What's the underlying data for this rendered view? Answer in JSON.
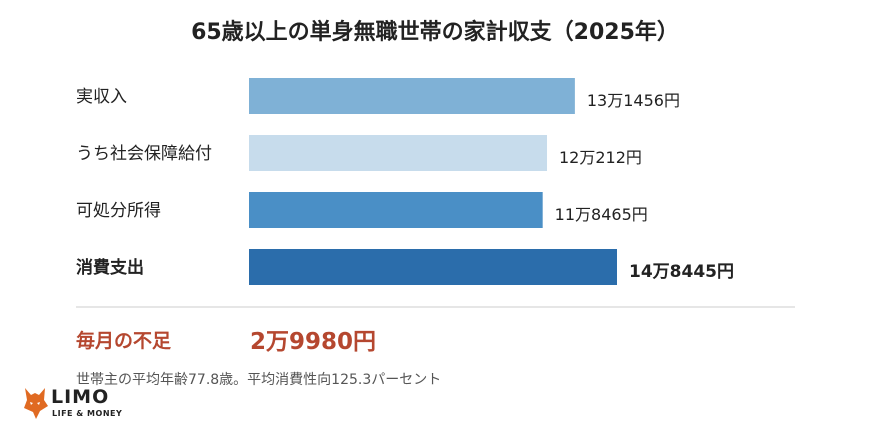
{
  "chart_data": {
    "type": "bar",
    "orientation": "horizontal",
    "title": "65歳以上の単身無職世帯の家計収支（2025年）",
    "categories": [
      "実収入",
      "うち社会保障給付",
      "可処分所得",
      "消費支出"
    ],
    "values": [
      131456,
      120212,
      118465,
      148445
    ],
    "value_labels": [
      "13万1456円",
      "12万212円",
      "11万8465円",
      "14万8445円"
    ],
    "bar_colors": [
      "#7fb1d6",
      "#c7dcec",
      "#4a8fc6",
      "#2b6dab"
    ],
    "bold_category_index": 3,
    "xlabel": "",
    "ylabel": "",
    "grid": false,
    "legend": "none"
  },
  "deficit": {
    "label": "毎月の不足",
    "value": "2万9980円",
    "color": "#b5472f"
  },
  "note": "世帯主の平均年齢77.8歳。平均消費性向125.3パーセント",
  "logo": {
    "icon": "fox-icon",
    "name": "LIMO",
    "tagline": "LIFE & MONEY",
    "color": "#e06a22"
  }
}
